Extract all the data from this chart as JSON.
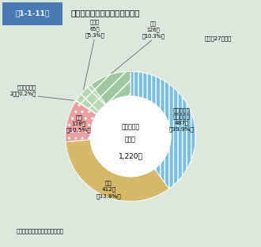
{
  "title_box": "第1-1-11図",
  "title_main": "建物火災の死因別死者発生状況",
  "subtitle": "（平成27年中）",
  "center_line1": "建物火災の",
  "center_line2": "死者数",
  "center_line3": "1,220人",
  "note": "（備考）「火災報告」により作成",
  "slices": [
    {
      "label_lines": [
        "一酸化炭素",
        "中毒・窒息",
        "487人",
        "（39.9%）"
      ],
      "value": 487,
      "color": "#7abfdf",
      "hatch": "|||"
    },
    {
      "label_lines": [
        "火傷",
        "412人",
        "（33.8%）"
      ],
      "value": 412,
      "color": "#d4b96a",
      "hatch": ""
    },
    {
      "label_lines": [
        "自殺",
        "128人",
        "（10.5%）"
      ],
      "value": 128,
      "color": "#e8a0a0",
      "hatch": ".."
    },
    {
      "label_lines": [
        "打撲・骨折等",
        "2人（0.2%）"
      ],
      "value": 2,
      "color": "#f5c87a",
      "hatch": "++"
    },
    {
      "label_lines": [
        "その他",
        "65人",
        "（5.3%）"
      ],
      "value": 65,
      "color": "#b8d8b0",
      "hatch": "xx"
    },
    {
      "label_lines": [
        "不明",
        "126人",
        "（10.3%）"
      ],
      "value": 126,
      "color": "#a0c8a0",
      "hatch": "//"
    }
  ],
  "bg_color": "#dce8dc",
  "header_bg": "#4a7ab5",
  "header_border": "#cccccc"
}
